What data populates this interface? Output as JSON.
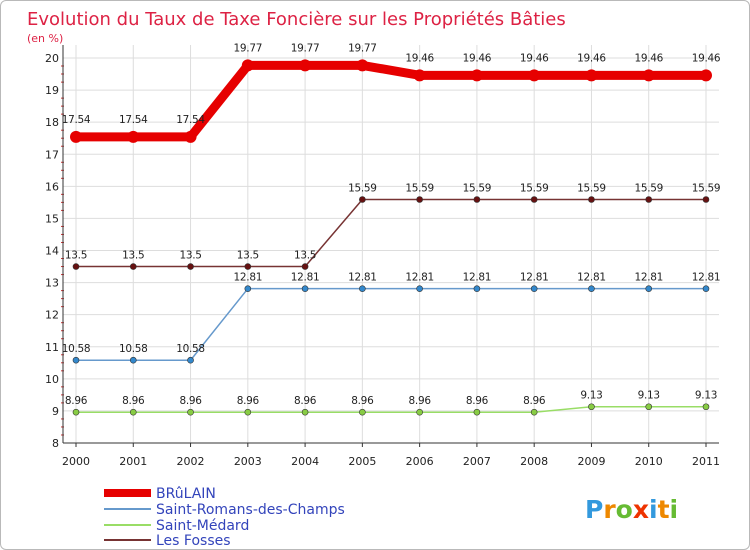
{
  "chart_data": {
    "type": "line",
    "title": "Evolution du Taux de Taxe Foncière sur les Propriétés Bâties",
    "subtitle": "(en %)",
    "x": [
      "2000",
      "2001",
      "2002",
      "2003",
      "2004",
      "2005",
      "2006",
      "2007",
      "2008",
      "2009",
      "2010",
      "2011"
    ],
    "y_ticks": [
      "8",
      "9",
      "10",
      "11",
      "12",
      "13",
      "14",
      "15",
      "16",
      "17",
      "18",
      "19",
      "20"
    ],
    "ylim": [
      8,
      20
    ],
    "legend_position": "bottom-left",
    "series": [
      {
        "name": "BRûLAIN",
        "color": "#e60000",
        "values": [
          17.54,
          17.54,
          17.54,
          19.77,
          19.77,
          19.77,
          19.46,
          19.46,
          19.46,
          19.46,
          19.46,
          19.46
        ],
        "labels": [
          "17.54",
          "17.54",
          "17.54",
          "19.77",
          "19.77",
          "19.77",
          "19.46",
          "19.46",
          "19.46",
          "19.46",
          "19.46",
          "19.46"
        ]
      },
      {
        "name": "Saint-Romans-des-Champs",
        "color": "#6699cc",
        "marker": "#3388cc",
        "values": [
          10.58,
          10.58,
          10.58,
          12.81,
          12.81,
          12.81,
          12.81,
          12.81,
          12.81,
          12.81,
          12.81,
          12.81
        ],
        "labels": [
          "10.58",
          "10.58",
          "10.58",
          "12.81",
          "12.81",
          "12.81",
          "12.81",
          "12.81",
          "12.81",
          "12.81",
          "12.81",
          "12.81"
        ]
      },
      {
        "name": "Saint-Médard",
        "color": "#99dd66",
        "marker": "#88cc44",
        "values": [
          8.96,
          8.96,
          8.96,
          8.96,
          8.96,
          8.96,
          8.96,
          8.96,
          8.96,
          9.13,
          9.13,
          9.13
        ],
        "labels": [
          "8.96",
          "8.96",
          "8.96",
          "8.96",
          "8.96",
          "8.96",
          "8.96",
          "8.96",
          "8.96",
          "9.13",
          "9.13",
          "9.13"
        ]
      },
      {
        "name": "Les Fosses",
        "color": "#773333",
        "marker": "#661111",
        "values": [
          13.5,
          13.5,
          13.5,
          13.5,
          13.5,
          15.59,
          15.59,
          15.59,
          15.59,
          15.59,
          15.59,
          15.59
        ],
        "labels": [
          "13.5",
          "13.5",
          "13.5",
          "13.5",
          "13.5",
          "15.59",
          "15.59",
          "15.59",
          "15.59",
          "15.59",
          "15.59",
          "15.59"
        ]
      }
    ]
  },
  "colors": {
    "title": "#dd2244",
    "legend_text": "#3344bb",
    "axis": "#333333",
    "grid": "#dddddd",
    "label": "#222222"
  },
  "logo": {
    "text": "Proxiti"
  }
}
